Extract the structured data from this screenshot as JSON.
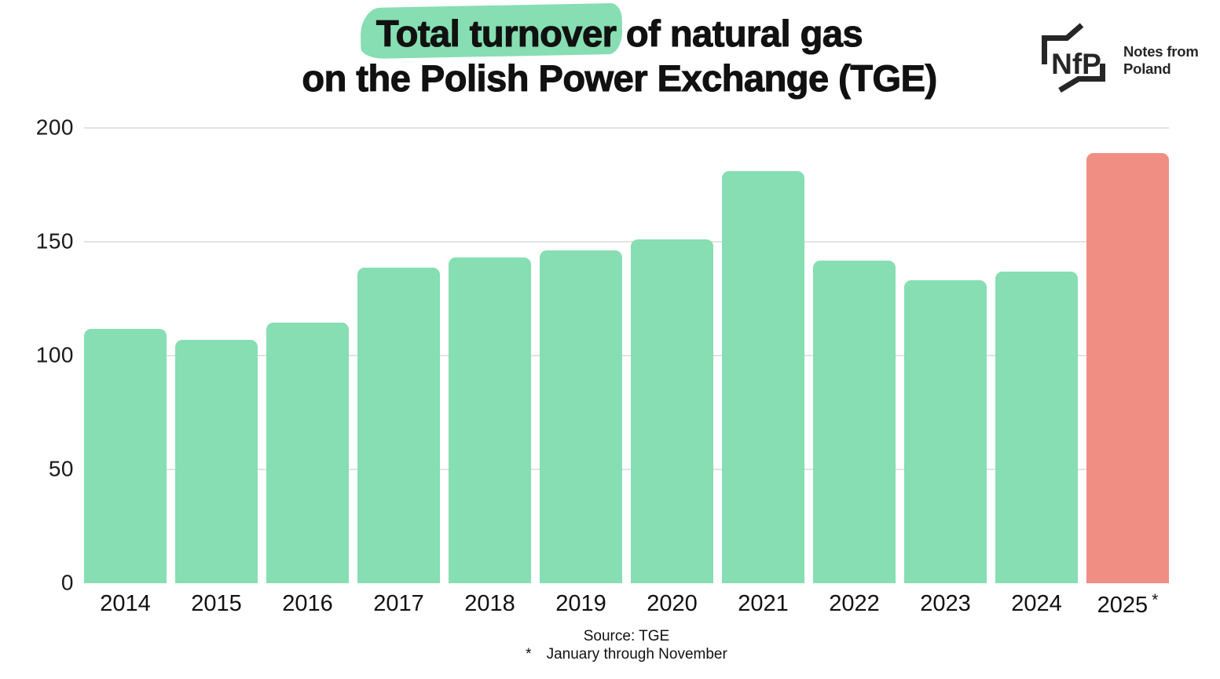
{
  "title": {
    "highlighted": "Total turnover",
    "line1_rest": " of natural gas",
    "line2": "on the Polish Power Exchange (TGE)"
  },
  "logo": {
    "monogram": "NfP",
    "name_line1": "Notes from",
    "name_line2": "Poland"
  },
  "footer": {
    "source": "Source: TGE",
    "footnote_symbol": "*",
    "footnote_text": "January through November"
  },
  "colors": {
    "bar_green": "#86deb2",
    "bar_salmon": "#f08e83",
    "title_highlight": "#86deb2",
    "gridline": "#e3e3e3",
    "text": "#111111",
    "logo": "#262626"
  },
  "chart_data": {
    "type": "bar",
    "title": "Total turnover of natural gas on the Polish Power Exchange (TGE)",
    "categories": [
      "2014",
      "2015",
      "2016",
      "2017",
      "2018",
      "2019",
      "2020",
      "2021",
      "2022",
      "2023",
      "2024",
      "2025*"
    ],
    "values": [
      111.7,
      106.9,
      114.4,
      138.5,
      143.0,
      146.2,
      150.9,
      180.9,
      141.6,
      133.0,
      136.8,
      189.1
    ],
    "highlighted_category": "2025*",
    "xlabel": "",
    "ylabel": "",
    "ylim": [
      0,
      200
    ],
    "yticks": [
      0,
      50,
      100,
      150,
      200
    ],
    "grid": true,
    "legend": false,
    "source": "TGE",
    "footnote": "2025 covers January through November"
  }
}
